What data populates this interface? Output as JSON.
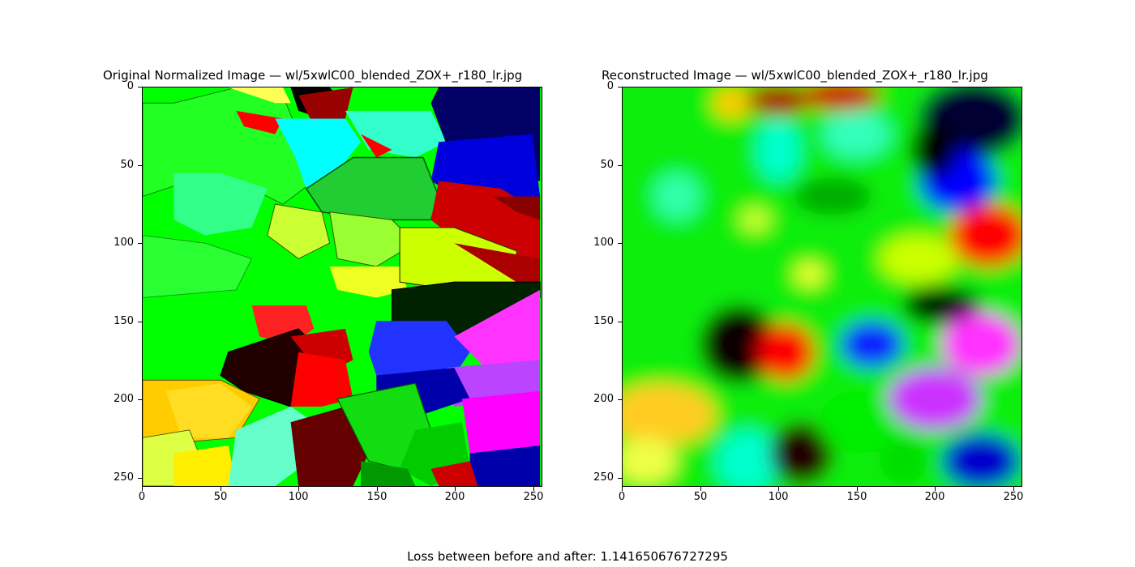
{
  "figure": {
    "left_title": "Original Normalized Image  —  wl/5xwlC00_blended_ZOX+_r180_lr.jpg",
    "right_title": "Reconstructed Image  —  wl/5xwlC00_blended_ZOX+_r180_lr.jpg",
    "footer": "Loss between before and after: 1.141650676727295",
    "y_ticks": [
      "0",
      "50",
      "100",
      "150",
      "200",
      "250"
    ],
    "x_ticks": [
      "0",
      "50",
      "100",
      "150",
      "200",
      "250"
    ]
  }
}
